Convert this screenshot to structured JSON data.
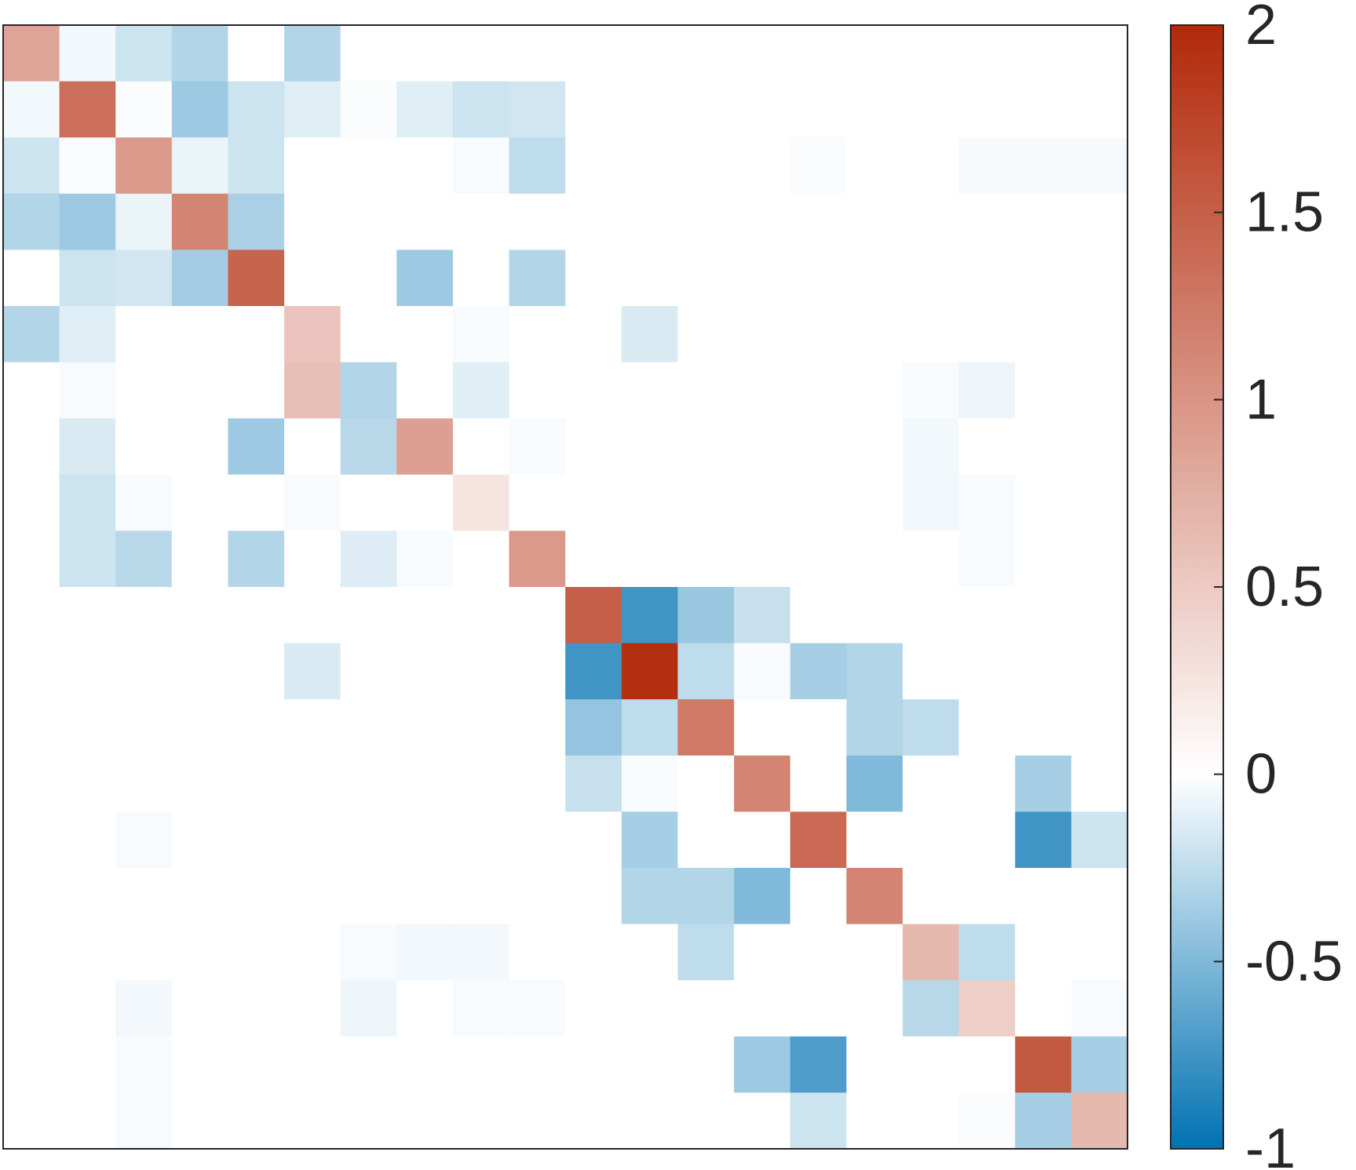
{
  "chart_data": {
    "type": "heatmap",
    "title": "",
    "xlabel": "",
    "ylabel": "",
    "n": 20,
    "colormap": {
      "min": -1,
      "mid": 0,
      "max": 2,
      "colors": {
        "neg": "#0072b2",
        "zero": "#ffffff",
        "pos": "#b2290a"
      }
    },
    "colorbar": {
      "ticks": [
        -1,
        -0.5,
        0,
        0.5,
        1,
        1.5,
        2
      ],
      "tick_labels": [
        "-1",
        "-0.5",
        "0",
        "0.5",
        "1",
        "1.5",
        "2"
      ]
    },
    "matrix": [
      [
        0.85,
        -0.05,
        -0.2,
        -0.3,
        0,
        -0.3,
        0,
        0,
        0,
        0,
        0,
        0,
        0,
        0,
        0,
        0,
        0,
        0,
        0,
        0
      ],
      [
        -0.05,
        1.35,
        -0.02,
        -0.38,
        -0.2,
        -0.12,
        -0.02,
        -0.12,
        -0.2,
        -0.18,
        0,
        0,
        0,
        0,
        0,
        0,
        0,
        0,
        0,
        0
      ],
      [
        -0.2,
        -0.02,
        0.95,
        -0.08,
        -0.2,
        0,
        0,
        0,
        -0.03,
        -0.25,
        0,
        0,
        0,
        0,
        -0.02,
        0,
        0,
        -0.04,
        -0.04,
        -0.04
      ],
      [
        -0.3,
        -0.38,
        -0.08,
        1.15,
        -0.33,
        0,
        0,
        0,
        0,
        0,
        0,
        0,
        0,
        0,
        0,
        0,
        0,
        0,
        0,
        0
      ],
      [
        0,
        -0.2,
        -0.18,
        -0.36,
        1.45,
        0,
        0,
        -0.38,
        0,
        -0.3,
        0,
        0,
        0,
        0,
        0,
        0,
        0,
        0,
        0,
        0
      ],
      [
        -0.3,
        -0.12,
        0,
        0,
        0,
        0.55,
        0,
        0,
        -0.03,
        0,
        0,
        -0.15,
        0,
        0,
        0,
        0,
        0,
        0,
        0,
        0
      ],
      [
        0,
        -0.03,
        0,
        0,
        0,
        0.6,
        -0.3,
        0,
        -0.12,
        0,
        0,
        0,
        0,
        0,
        0,
        0,
        -0.03,
        -0.07,
        0,
        0
      ],
      [
        0,
        -0.15,
        0,
        0,
        -0.38,
        0,
        -0.28,
        0.9,
        0,
        -0.03,
        0,
        0,
        0,
        0,
        0,
        0,
        -0.05,
        0,
        0,
        0
      ],
      [
        0,
        -0.2,
        -0.03,
        0,
        0,
        -0.03,
        0,
        0,
        0.25,
        0,
        0,
        0,
        0,
        0,
        0,
        0,
        -0.05,
        -0.03,
        0,
        0
      ],
      [
        0,
        -0.2,
        -0.28,
        0,
        -0.3,
        0,
        -0.13,
        -0.03,
        0,
        0.95,
        0,
        0,
        0,
        0,
        0,
        0,
        0,
        -0.03,
        0,
        0
      ],
      [
        0,
        0,
        0,
        0,
        0,
        0,
        0,
        0,
        0,
        0,
        1.5,
        -0.75,
        -0.4,
        -0.22,
        0,
        0,
        0,
        0,
        0,
        0
      ],
      [
        0,
        0,
        0,
        0,
        0,
        -0.15,
        0,
        0,
        0,
        0,
        -0.75,
        1.95,
        -0.25,
        -0.03,
        -0.35,
        -0.3,
        0,
        0,
        0,
        0
      ],
      [
        0,
        0,
        0,
        0,
        0,
        0,
        0,
        0,
        0,
        0,
        -0.42,
        -0.25,
        1.25,
        0,
        0,
        -0.3,
        -0.25,
        0,
        0,
        0
      ],
      [
        0,
        0,
        0,
        0,
        0,
        0,
        0,
        0,
        0,
        0,
        -0.22,
        -0.03,
        0,
        1.15,
        0,
        -0.5,
        0,
        0,
        -0.35,
        0
      ],
      [
        0,
        0,
        -0.03,
        0,
        0,
        0,
        0,
        0,
        0,
        0,
        0,
        -0.35,
        0,
        0,
        1.4,
        0,
        0,
        0,
        -0.75,
        -0.2
      ],
      [
        0,
        0,
        0,
        0,
        0,
        0,
        0,
        0,
        0,
        0,
        0,
        -0.3,
        -0.3,
        -0.5,
        0,
        1.15,
        0,
        0,
        0,
        0
      ],
      [
        0,
        0,
        0,
        0,
        0,
        0,
        -0.03,
        -0.05,
        -0.05,
        0,
        0,
        0,
        -0.25,
        0,
        0,
        0,
        0.65,
        -0.25,
        0,
        0
      ],
      [
        0,
        0,
        -0.05,
        0,
        0,
        0,
        -0.07,
        0,
        -0.03,
        -0.03,
        0,
        0,
        0,
        0,
        0,
        0,
        -0.28,
        0.45,
        0,
        -0.03
      ],
      [
        0,
        0,
        -0.03,
        0,
        0,
        0,
        0,
        0,
        0,
        0,
        0,
        0,
        0,
        -0.38,
        -0.7,
        0,
        0,
        0,
        1.55,
        -0.35
      ],
      [
        0,
        0,
        -0.03,
        0,
        0,
        0,
        0,
        0,
        0,
        0,
        0,
        0,
        0,
        0,
        -0.2,
        0,
        0,
        -0.02,
        -0.35,
        0.65
      ]
    ]
  }
}
